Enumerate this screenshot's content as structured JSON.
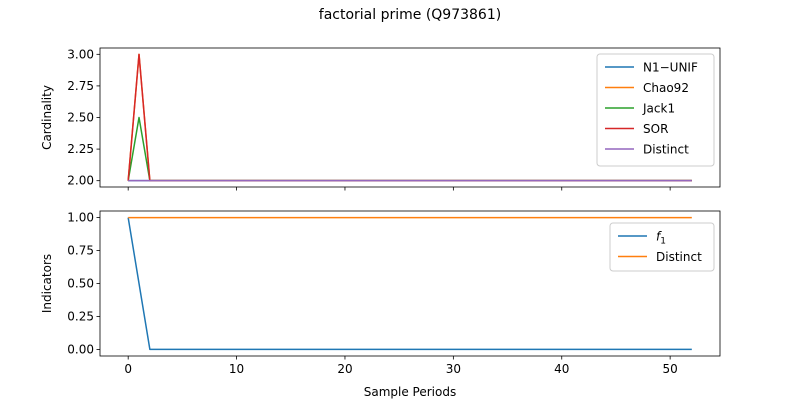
{
  "figure": {
    "title": "factorial prime (Q973861)"
  },
  "chart_data": [
    {
      "type": "line",
      "title": "",
      "xlabel": "",
      "ylabel": "Cardinality",
      "xlim": [
        -2.6,
        54.6
      ],
      "ylim": [
        1.95,
        3.05
      ],
      "xticks": [
        0,
        10,
        20,
        30,
        40,
        50
      ],
      "xtick_labels_visible": false,
      "yticks": [
        2.0,
        2.25,
        2.5,
        2.75,
        3.0
      ],
      "ytick_labels": [
        "2.00",
        "2.25",
        "2.50",
        "2.75",
        "3.00"
      ],
      "grid": false,
      "legend_position": "upper right",
      "x_range": [
        0,
        52
      ],
      "series": [
        {
          "name": "N1−UNIF",
          "color": "#1f77b4",
          "points": [
            [
              0,
              2
            ],
            [
              52,
              2
            ]
          ]
        },
        {
          "name": "Chao92",
          "color": "#ff7f0e",
          "points": [
            [
              0,
              2
            ],
            [
              1,
              3
            ],
            [
              2,
              2
            ],
            [
              52,
              2
            ]
          ]
        },
        {
          "name": "Jack1",
          "color": "#2ca02c",
          "points": [
            [
              0,
              2
            ],
            [
              1,
              2.5
            ],
            [
              2,
              2
            ],
            [
              52,
              2
            ]
          ]
        },
        {
          "name": "SOR",
          "color": "#d62728",
          "points": [
            [
              0,
              2
            ],
            [
              1,
              3
            ],
            [
              2,
              2
            ],
            [
              52,
              2
            ]
          ]
        },
        {
          "name": "Distinct",
          "color": "#9467bd",
          "points": [
            [
              0,
              2
            ],
            [
              52,
              2
            ]
          ]
        }
      ]
    },
    {
      "type": "line",
      "title": "",
      "xlabel": "Sample Periods",
      "ylabel": "Indicators",
      "xlim": [
        -2.6,
        54.6
      ],
      "ylim": [
        -0.05,
        1.05
      ],
      "xticks": [
        0,
        10,
        20,
        30,
        40,
        50
      ],
      "xtick_labels": [
        "0",
        "10",
        "20",
        "30",
        "40",
        "50"
      ],
      "yticks": [
        0.0,
        0.25,
        0.5,
        0.75,
        1.0
      ],
      "ytick_labels": [
        "0.00",
        "0.25",
        "0.50",
        "0.75",
        "1.00"
      ],
      "grid": false,
      "legend_position": "upper right",
      "x_range": [
        0,
        52
      ],
      "series": [
        {
          "name": "f",
          "name_subscript": "1",
          "color": "#1f77b4",
          "points": [
            [
              0,
              1
            ],
            [
              2,
              0
            ],
            [
              52,
              0
            ]
          ]
        },
        {
          "name": "Distinct",
          "color": "#ff7f0e",
          "points": [
            [
              0,
              1
            ],
            [
              52,
              1
            ]
          ]
        }
      ]
    }
  ]
}
